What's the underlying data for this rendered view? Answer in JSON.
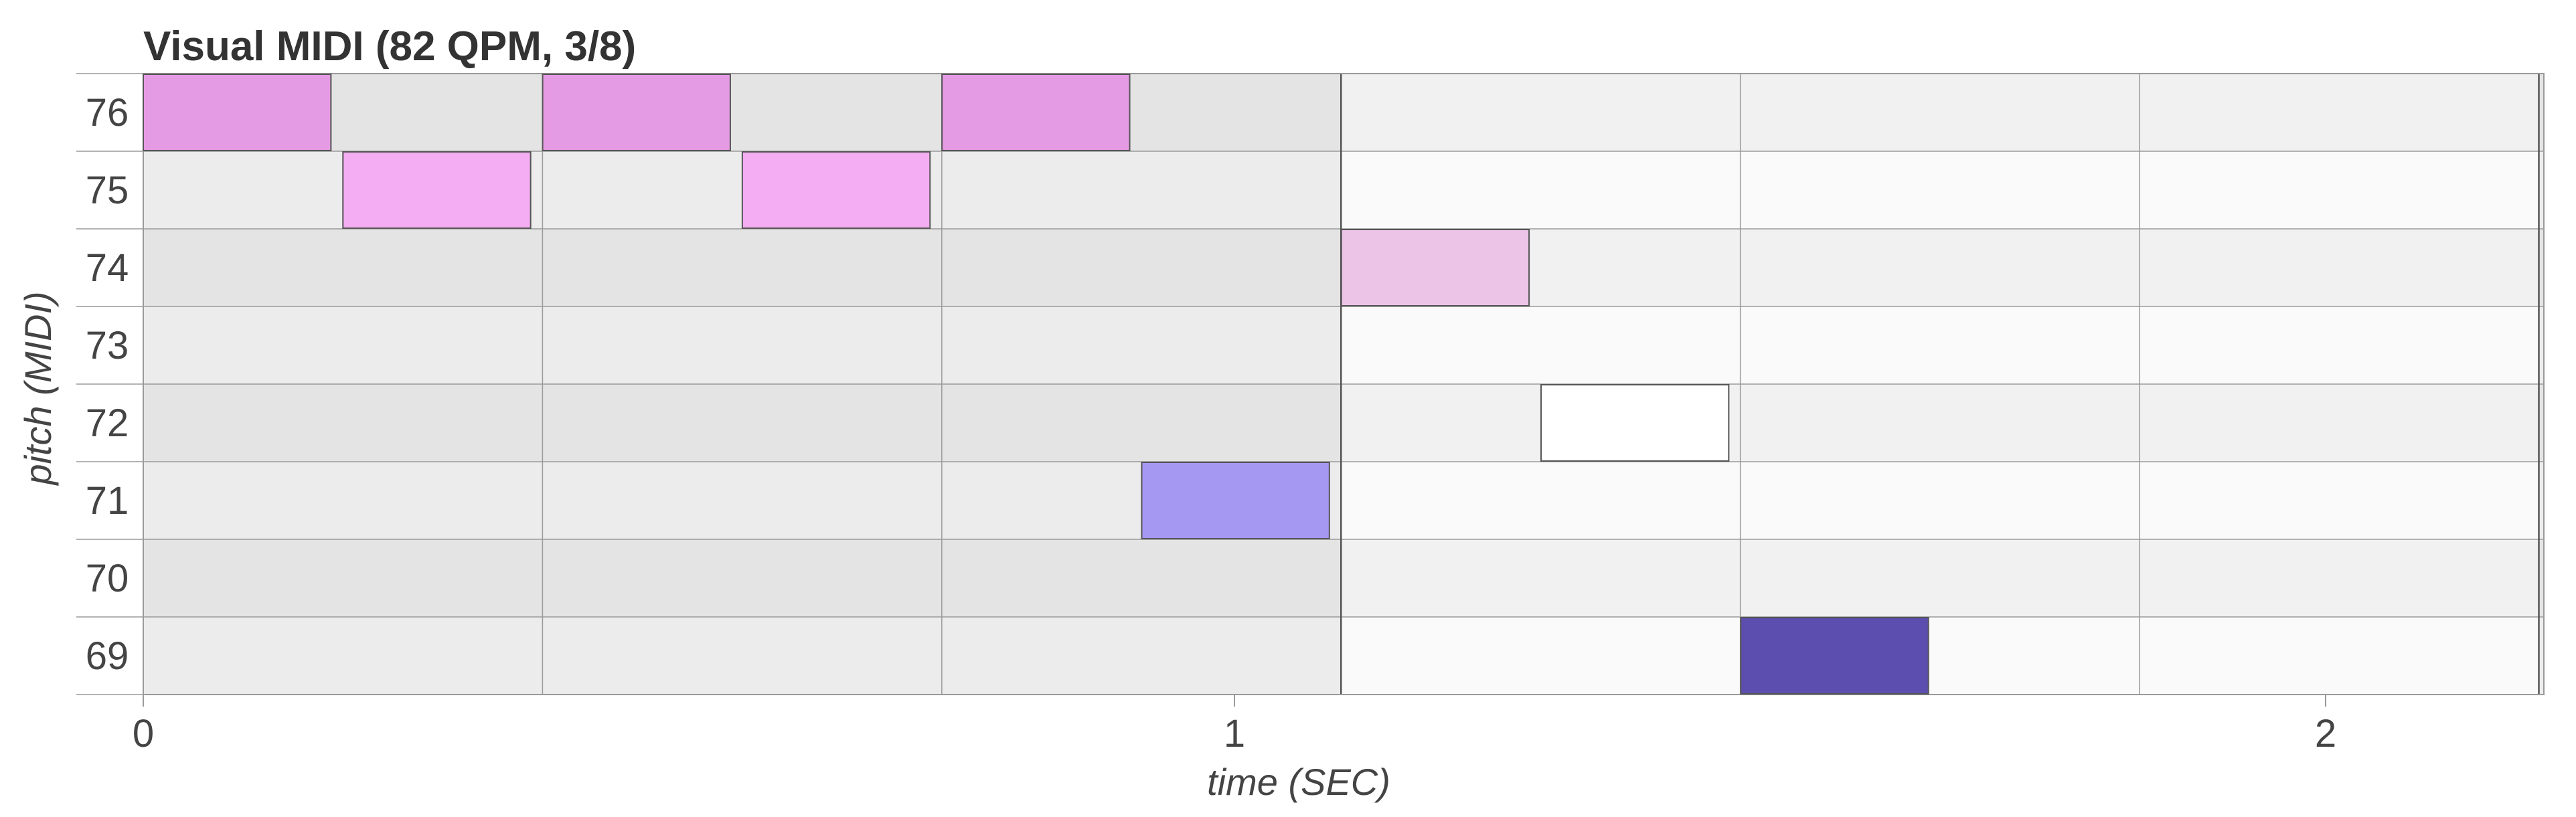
{
  "chart_data": {
    "type": "piano-roll",
    "title": "Visual MIDI (82 QPM, 3/8)",
    "xlabel": "time (SEC)",
    "ylabel": "pitch (MIDI)",
    "xlim": [
      0,
      2.2
    ],
    "x_ticks": [
      {
        "value": 0,
        "label": "0"
      },
      {
        "value": 1,
        "label": "1"
      },
      {
        "value": 2,
        "label": "2"
      }
    ],
    "pitch_range": [
      69,
      76
    ],
    "pitch_labels": [
      "69",
      "70",
      "71",
      "72",
      "73",
      "74",
      "75",
      "76"
    ],
    "beat_seconds": 0.3659,
    "beats_per_bar": 3,
    "grid": true,
    "notes": [
      {
        "pitch": 76,
        "start": 0.0,
        "end": 0.172,
        "color": "#e59be3"
      },
      {
        "pitch": 75,
        "start": 0.183,
        "end": 0.355,
        "color": "#f4adf2"
      },
      {
        "pitch": 76,
        "start": 0.366,
        "end": 0.538,
        "color": "#e59be3"
      },
      {
        "pitch": 75,
        "start": 0.549,
        "end": 0.721,
        "color": "#f4adf2"
      },
      {
        "pitch": 76,
        "start": 0.732,
        "end": 0.904,
        "color": "#e59be3"
      },
      {
        "pitch": 71,
        "start": 0.915,
        "end": 1.087,
        "color": "#a598f2"
      },
      {
        "pitch": 74,
        "start": 1.098,
        "end": 1.27,
        "color": "#ecc4e8"
      },
      {
        "pitch": 72,
        "start": 1.281,
        "end": 1.453,
        "color": "#ffffff"
      },
      {
        "pitch": 69,
        "start": 1.464,
        "end": 1.636,
        "color": "#5c4eae"
      }
    ],
    "colors": {
      "bar_odd_row_a": "#e4e4e4",
      "bar_odd_row_b": "#ececec",
      "bar_even_row_a": "#f1f1f1",
      "bar_even_row_b": "#fafafa",
      "note_stroke": "#555555",
      "grid_line": "#9a9a9a",
      "bar_line": "#555555"
    }
  }
}
